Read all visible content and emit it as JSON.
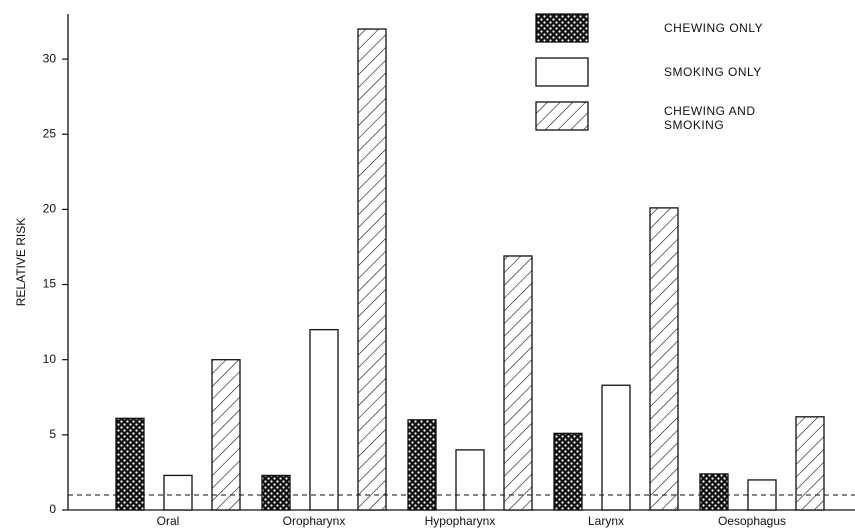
{
  "chart_data": {
    "type": "bar",
    "y_label": "RELATIVE RISK",
    "categories": [
      "Oral",
      "Oropharynx",
      "Hypopharynx",
      "Larynx",
      "Oesophagus"
    ],
    "series": [
      {
        "name": "CHEWING ONLY",
        "color": "#000000",
        "pattern": "crosshatch",
        "values": [
          6.1,
          2.3,
          6.0,
          5.1,
          2.4
        ]
      },
      {
        "name": "SMOKING ONLY",
        "color": "#ffffff",
        "pattern": "solid",
        "values": [
          2.3,
          12.0,
          4.0,
          8.3,
          2.0
        ]
      },
      {
        "name": "CHEWING AND SMOKING",
        "color": "#ffffff",
        "pattern": "diagonal",
        "values": [
          10.0,
          32.0,
          16.9,
          20.1,
          6.2
        ]
      }
    ],
    "reference_line": 1,
    "ylim": [
      0,
      33
    ],
    "yticks": [
      0,
      5,
      10,
      15,
      20,
      25,
      30
    ],
    "grid": false,
    "legend": "top-right"
  }
}
